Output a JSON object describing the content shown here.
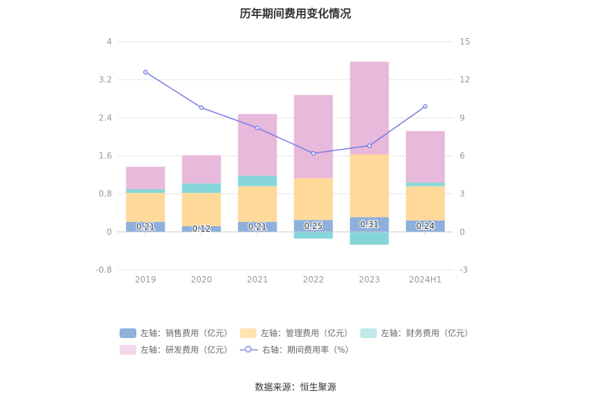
{
  "chart_data": {
    "type": "bar",
    "title": "历年期间费用变化情况",
    "categories": [
      "2019",
      "2020",
      "2021",
      "2022",
      "2023",
      "2024H1"
    ],
    "stacked": true,
    "left_axis": {
      "ylim": [
        -0.8,
        4
      ],
      "ticks": [
        "-0.8",
        "0",
        "0.8",
        "1.6",
        "2.4",
        "3.2",
        "4"
      ]
    },
    "right_axis": {
      "ylim": [
        -3,
        15
      ],
      "ticks": [
        "-3",
        "0",
        "3",
        "6",
        "9",
        "12",
        "15"
      ]
    },
    "series": [
      {
        "name": "左轴：销售费用（亿元）",
        "axis": "left",
        "type": "bar",
        "color": "#8eb0dd",
        "values": [
          0.21,
          0.12,
          0.21,
          0.25,
          0.31,
          0.24
        ],
        "labels": [
          "0.21",
          "0.12",
          "0.21",
          "0.25",
          "0.31",
          "0.24"
        ]
      },
      {
        "name": "左轴：管理费用（亿元）",
        "axis": "left",
        "type": "bar",
        "color": "#ffd99a",
        "values": [
          0.61,
          0.7,
          0.75,
          0.88,
          1.32,
          0.72
        ]
      },
      {
        "name": "左轴：财务费用（亿元）",
        "axis": "left",
        "type": "bar",
        "color": "#86d6d9",
        "values": [
          0.08,
          0.2,
          0.22,
          -0.14,
          -0.27,
          0.08
        ]
      },
      {
        "name": "左轴：研发费用（亿元）",
        "axis": "left",
        "type": "bar",
        "color": "#e8b9da",
        "values": [
          0.47,
          0.59,
          1.3,
          1.75,
          1.95,
          1.08
        ]
      },
      {
        "name": "右轴：期间费用率（%）",
        "axis": "right",
        "type": "line",
        "color": "#7b7fe8",
        "values": [
          12.6,
          9.8,
          8.2,
          6.2,
          6.8,
          9.9
        ]
      }
    ],
    "grid": true,
    "legend_position": "bottom"
  },
  "legend": [
    {
      "label": "左轴：销售费用（亿元）",
      "color": "#8eb0dd",
      "kind": "bar"
    },
    {
      "label": "左轴：管理费用（亿元）",
      "color": "#ffe3b3",
      "kind": "bar"
    },
    {
      "label": "左轴：财务费用（亿元）",
      "color": "#bfe9ea",
      "kind": "bar"
    },
    {
      "label": "左轴：研发费用（亿元）",
      "color": "#f3d8ea",
      "kind": "bar"
    },
    {
      "label": "右轴：期间费用率（%）",
      "color": "#9fa2f0",
      "kind": "line"
    }
  ],
  "source": "数据来源：恒生聚源"
}
